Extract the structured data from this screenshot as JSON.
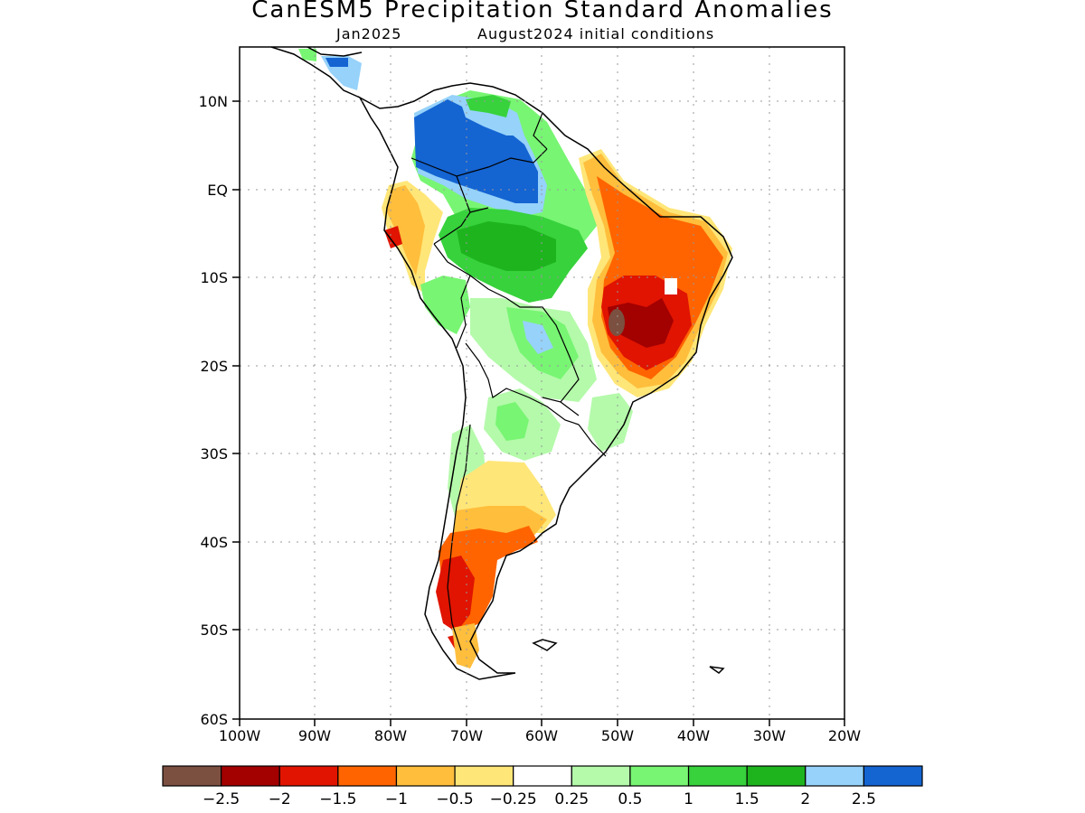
{
  "title": "CanESM5 Precipitation Standard Anomalies",
  "subtitle_left": "Jan2025",
  "subtitle_right": "August2024 initial conditions",
  "y_ticks": [
    "10N",
    "EQ",
    "10S",
    "20S",
    "30S",
    "40S",
    "50S",
    "60S"
  ],
  "x_ticks": [
    "100W",
    "90W",
    "80W",
    "70W",
    "60W",
    "50W",
    "40W",
    "30W",
    "20W"
  ],
  "colorbar": {
    "colors": [
      "#7b5040",
      "#a30000",
      "#e01400",
      "#ff6400",
      "#ffbe3c",
      "#ffe678",
      "#ffffff",
      "#b4faaa",
      "#78f573",
      "#37d23c",
      "#1eb41e",
      "#96d2fa",
      "#1464d2"
    ],
    "labels": [
      "−2.5",
      "−2",
      "−1.5",
      "−1",
      "−0.5",
      "−0.25",
      "0.25",
      "0.5",
      "1",
      "1.5",
      "2",
      "2.5"
    ]
  }
}
